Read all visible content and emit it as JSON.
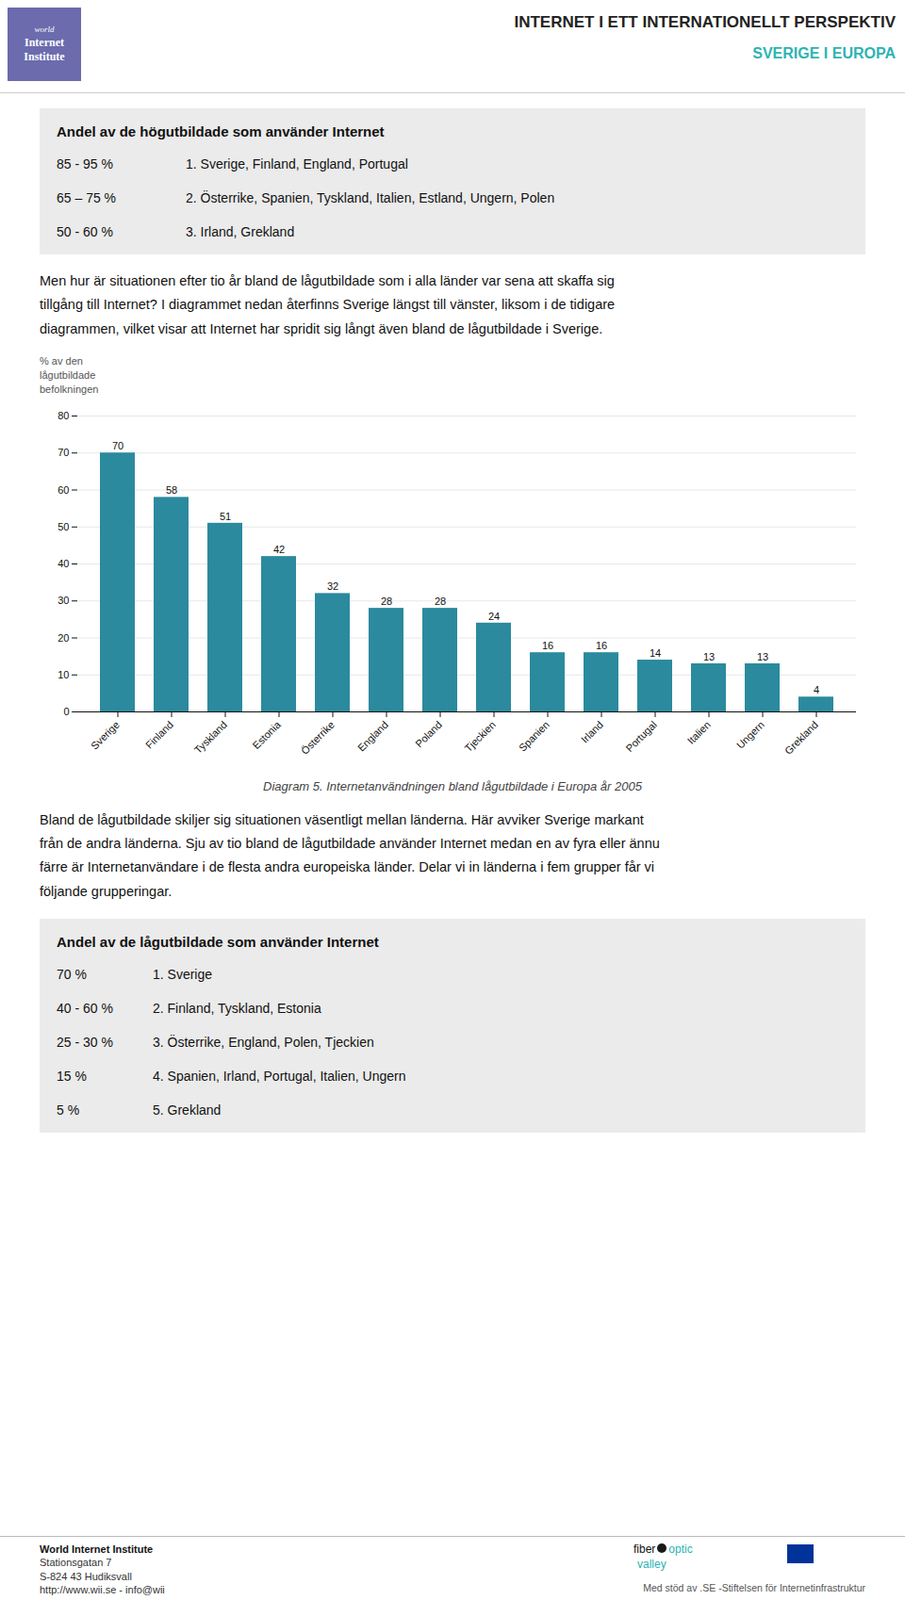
{
  "page": {
    "title": "INTERNET I ETT INTERNATIONELLT PERSPEKTIV",
    "subtitle": "SVERIGE I EUROPA",
    "logo_text": [
      "world",
      "Internet",
      "Institute"
    ],
    "logo_color": "#6B6BAE",
    "subtitle_color": "#2DB3B3",
    "box_color": "#EBEBEB",
    "box1": {
      "title": "Andel av de högutbildade som använder Internet",
      "rows": [
        [
          "85 - 95 %",
          "1. Sverige, Finland, England, Portugal"
        ],
        [
          "65 – 75 %",
          "2. Österrike, Spanien, Tyskland, Italien, Estland, Ungern, Polen"
        ],
        [
          "50 - 60 %",
          "3. Irland, Grekland"
        ]
      ]
    },
    "paragraph1": [
      "Men hur är situationen efter tio år bland de lågutbildade som i alla länder var sena att skaffa sig",
      "tillgång till Internet? I diagrammet nedan återfinns Sverige längst till vänster, liksom i de tidigare",
      "diagrammen, vilket visar att Internet har spridit sig långt även bland de lågutbildade i Sverige."
    ],
    "paragraph2": [
      "Bland de lågutbildade skiljer sig situationen väsentligt mellan länderna. Här avviker Sverige markant",
      "från de andra länderna. Sju av tio bland de lågutbildade använder Internet medan en av fyra eller ännu",
      "färre är Internetanvändare i de flesta andra europeiska länder. Delar vi in länderna i fem grupper får vi",
      "följande grupperingar."
    ],
    "box2": {
      "title": "Andel av de lågutbildade som använder Internet",
      "rows": [
        [
          "70 %",
          "1. Sverige"
        ],
        [
          "40 - 60 %",
          "2. Finland, Tyskland, Estonia"
        ],
        [
          "25 - 30 %",
          "3. Österrike, England, Polen, Tjeckien"
        ],
        [
          "15 %",
          "4. Spanien, Irland, Portugal, Italien, Ungern"
        ],
        [
          "5 %",
          "5. Grekland"
        ]
      ]
    },
    "footer": {
      "org": "World Internet Institute",
      "addr1": "Stationsgatan 7",
      "addr2": "S-824 43 Hudiksvall",
      "web": "http://www.wii.se  -  info@wii",
      "right": "Med stöd av .SE -Stiftelsen för Internetinfrastruktur",
      "logo_text": [
        "fiber",
        "optic",
        "valley"
      ]
    }
  },
  "chart_data": {
    "type": "bar",
    "title": "Diagram 5. Internetanvändningen bland lågutbildade i Europa år 2005",
    "ylabel": "% av den\nlågutbildade\nbefolkningen",
    "categories": [
      "Sverige",
      "Finland",
      "Tyskland",
      "Estonia",
      "Österrike",
      "England",
      "Poland",
      "Tjeckien",
      "Spanien",
      "Irland",
      "Portugal",
      "Italien",
      "Ungern",
      "Grekland"
    ],
    "values": [
      70,
      58,
      51,
      42,
      32,
      28,
      28,
      24,
      16,
      16,
      14,
      13,
      13,
      4
    ],
    "color": "#2B8A9E",
    "ylim": [
      0,
      80
    ],
    "yticks": [
      0,
      10,
      20,
      30,
      40,
      50,
      60,
      70,
      80
    ],
    "grid": true,
    "data_labels": true
  }
}
